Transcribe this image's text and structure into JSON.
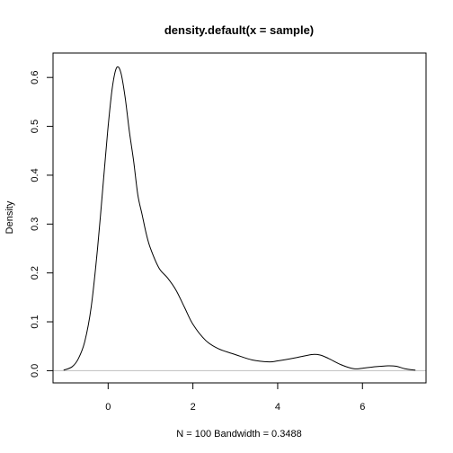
{
  "chart_data": {
    "type": "line",
    "title": "density.default(x = sample)",
    "xlabel": "N = 100   Bandwidth = 0.3488",
    "ylabel": "Density",
    "xlim": [
      -1.3,
      7.5
    ],
    "ylim": [
      -0.025,
      0.65
    ],
    "x_ticks": [
      0,
      2,
      4,
      6
    ],
    "x_tick_labels": [
      "0",
      "2",
      "4",
      "6"
    ],
    "y_ticks": [
      0.0,
      0.1,
      0.2,
      0.3,
      0.4,
      0.5,
      0.6
    ],
    "y_tick_labels": [
      "0.0",
      "0.1",
      "0.2",
      "0.3",
      "0.4",
      "0.5",
      "0.6"
    ],
    "grid": false,
    "baseline": 0,
    "line_color": "#000000",
    "baseline_color": "#bebebe",
    "series": [
      {
        "x": [
          -1.05,
          -0.85,
          -0.7,
          -0.55,
          -0.4,
          -0.25,
          -0.1,
          0.0,
          0.1,
          0.2,
          0.3,
          0.4,
          0.5,
          0.6,
          0.7,
          0.8,
          0.9,
          1.0,
          1.2,
          1.4,
          1.6,
          1.8,
          2.0,
          2.3,
          2.6,
          3.0,
          3.4,
          3.8,
          4.0,
          4.4,
          4.8,
          5.0,
          5.2,
          5.5,
          5.8,
          6.0,
          6.3,
          6.6,
          6.8,
          7.0,
          7.25
        ],
        "y": [
          0.001,
          0.008,
          0.025,
          0.06,
          0.13,
          0.25,
          0.4,
          0.5,
          0.58,
          0.62,
          0.61,
          0.56,
          0.49,
          0.43,
          0.36,
          0.32,
          0.28,
          0.25,
          0.21,
          0.19,
          0.165,
          0.13,
          0.095,
          0.062,
          0.045,
          0.033,
          0.022,
          0.018,
          0.02,
          0.026,
          0.033,
          0.032,
          0.025,
          0.012,
          0.004,
          0.005,
          0.008,
          0.01,
          0.009,
          0.004,
          0.001
        ]
      }
    ]
  }
}
